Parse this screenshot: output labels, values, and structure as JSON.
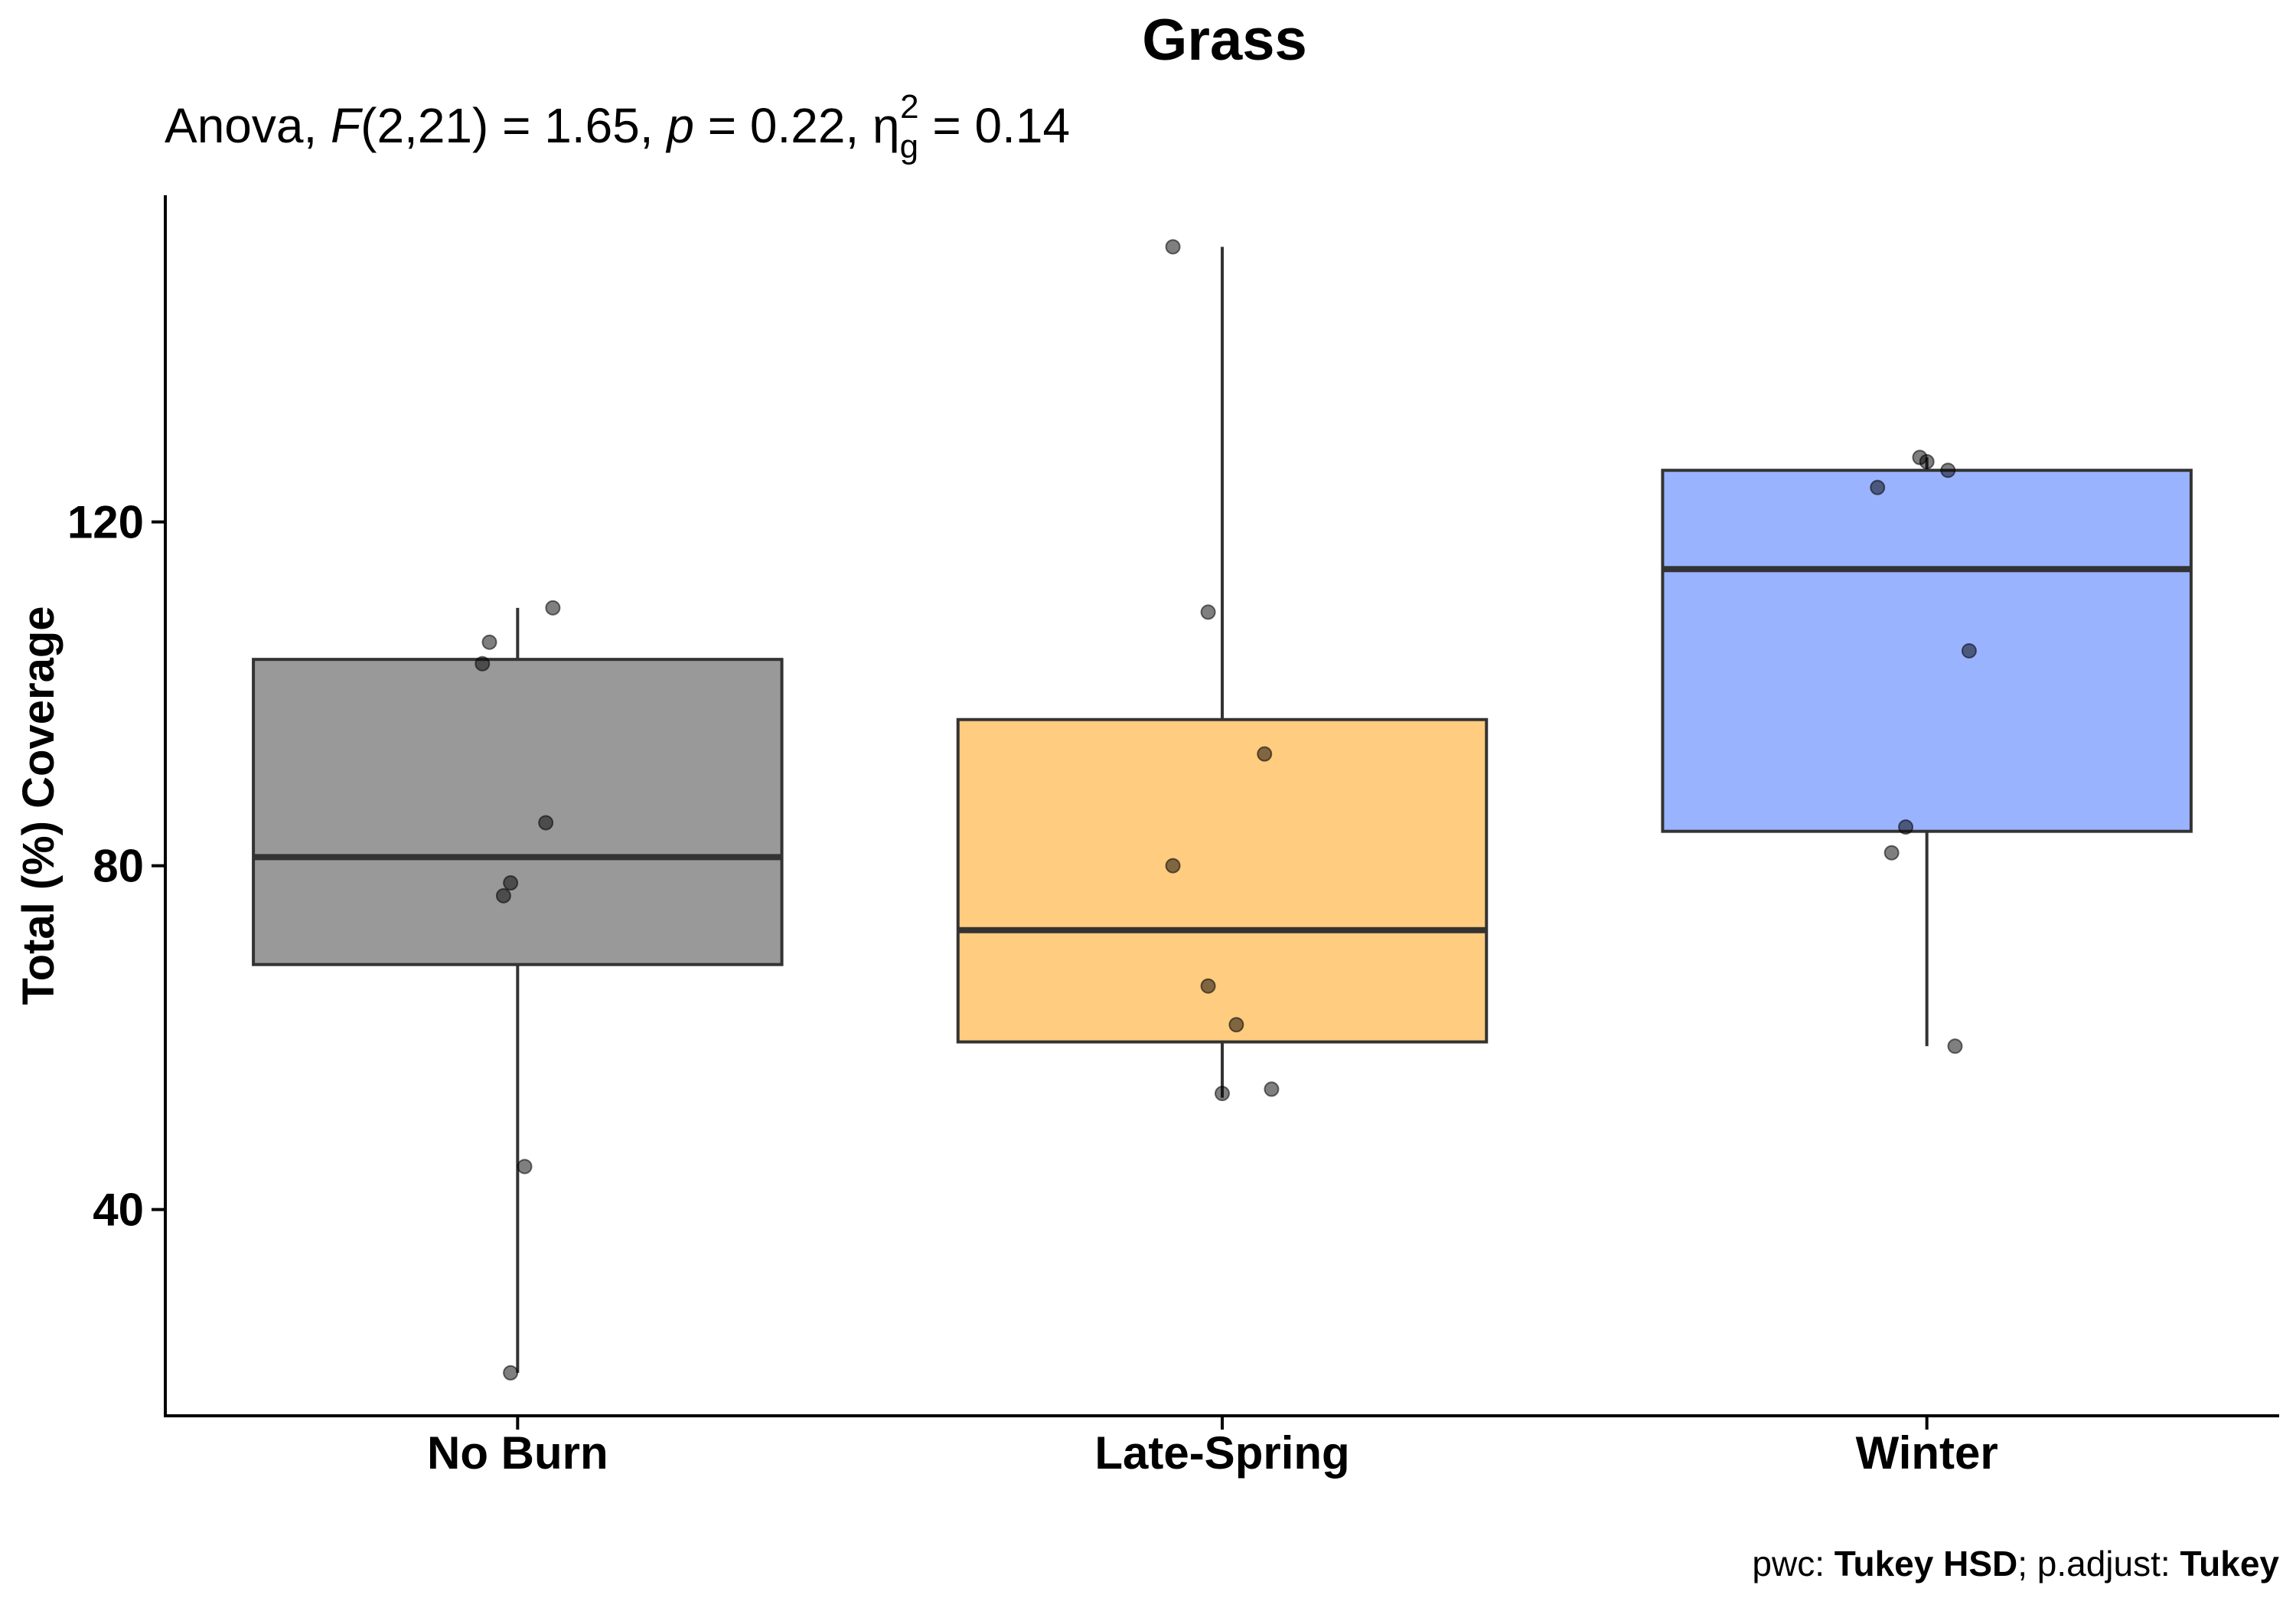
{
  "chart_data": {
    "type": "box",
    "title": "Grass",
    "subtitle": {
      "test": "Anova, ",
      "f_symbol": "F",
      "f_args": "(2,21) = 1.65, ",
      "p_symbol": "p",
      "p_value": " = 0.22, ",
      "eta_symbol": "η",
      "eta_sub": "g",
      "eta_sup": "2",
      "eta_value": " = 0.14"
    },
    "xlabel": "",
    "ylabel": "Total (%) Coverage",
    "ylim": [
      16,
      158
    ],
    "yticks": [
      40,
      80,
      120
    ],
    "grid": false,
    "legend": "none",
    "categories": [
      "No Burn",
      "Late-Spring",
      "Winter"
    ],
    "groups": [
      {
        "name": "No Burn",
        "color": "#999999",
        "whisker_low": 21,
        "q1": 68.5,
        "median": 81,
        "q3": 104,
        "whisker_high": 110,
        "points": [
          {
            "dx": 0.05,
            "y": 110
          },
          {
            "dx": -0.04,
            "y": 106
          },
          {
            "dx": -0.05,
            "y": 103.5
          },
          {
            "dx": 0.04,
            "y": 85
          },
          {
            "dx": -0.01,
            "y": 78
          },
          {
            "dx": -0.02,
            "y": 76.5
          },
          {
            "dx": 0.01,
            "y": 45
          },
          {
            "dx": -0.01,
            "y": 21
          }
        ]
      },
      {
        "name": "Late-Spring",
        "color": "#FFCC80",
        "whisker_low": 53,
        "q1": 59.5,
        "median": 72.5,
        "q3": 97,
        "whisker_high": 152,
        "points": [
          {
            "dx": -0.07,
            "y": 152
          },
          {
            "dx": -0.02,
            "y": 109.5
          },
          {
            "dx": 0.06,
            "y": 93
          },
          {
            "dx": -0.07,
            "y": 80
          },
          {
            "dx": -0.02,
            "y": 66
          },
          {
            "dx": 0.02,
            "y": 61.5
          },
          {
            "dx": 0.07,
            "y": 54
          },
          {
            "dx": 0.0,
            "y": 53.5
          }
        ]
      },
      {
        "name": "Winter",
        "color": "#99B3FF",
        "whisker_low": 59,
        "q1": 84,
        "median": 114.5,
        "q3": 126,
        "whisker_high": 127.5,
        "points": [
          {
            "dx": -0.01,
            "y": 127.5
          },
          {
            "dx": 0.0,
            "y": 127
          },
          {
            "dx": 0.03,
            "y": 126
          },
          {
            "dx": -0.07,
            "y": 124
          },
          {
            "dx": 0.06,
            "y": 105
          },
          {
            "dx": -0.03,
            "y": 84.5
          },
          {
            "dx": -0.05,
            "y": 81.5
          },
          {
            "dx": 0.04,
            "y": 59
          }
        ]
      }
    ],
    "caption": {
      "pwc_label": "pwc: ",
      "pwc_value": "Tukey HSD",
      "sep": "; p.adjust: ",
      "adjust_value": "Tukey"
    }
  }
}
